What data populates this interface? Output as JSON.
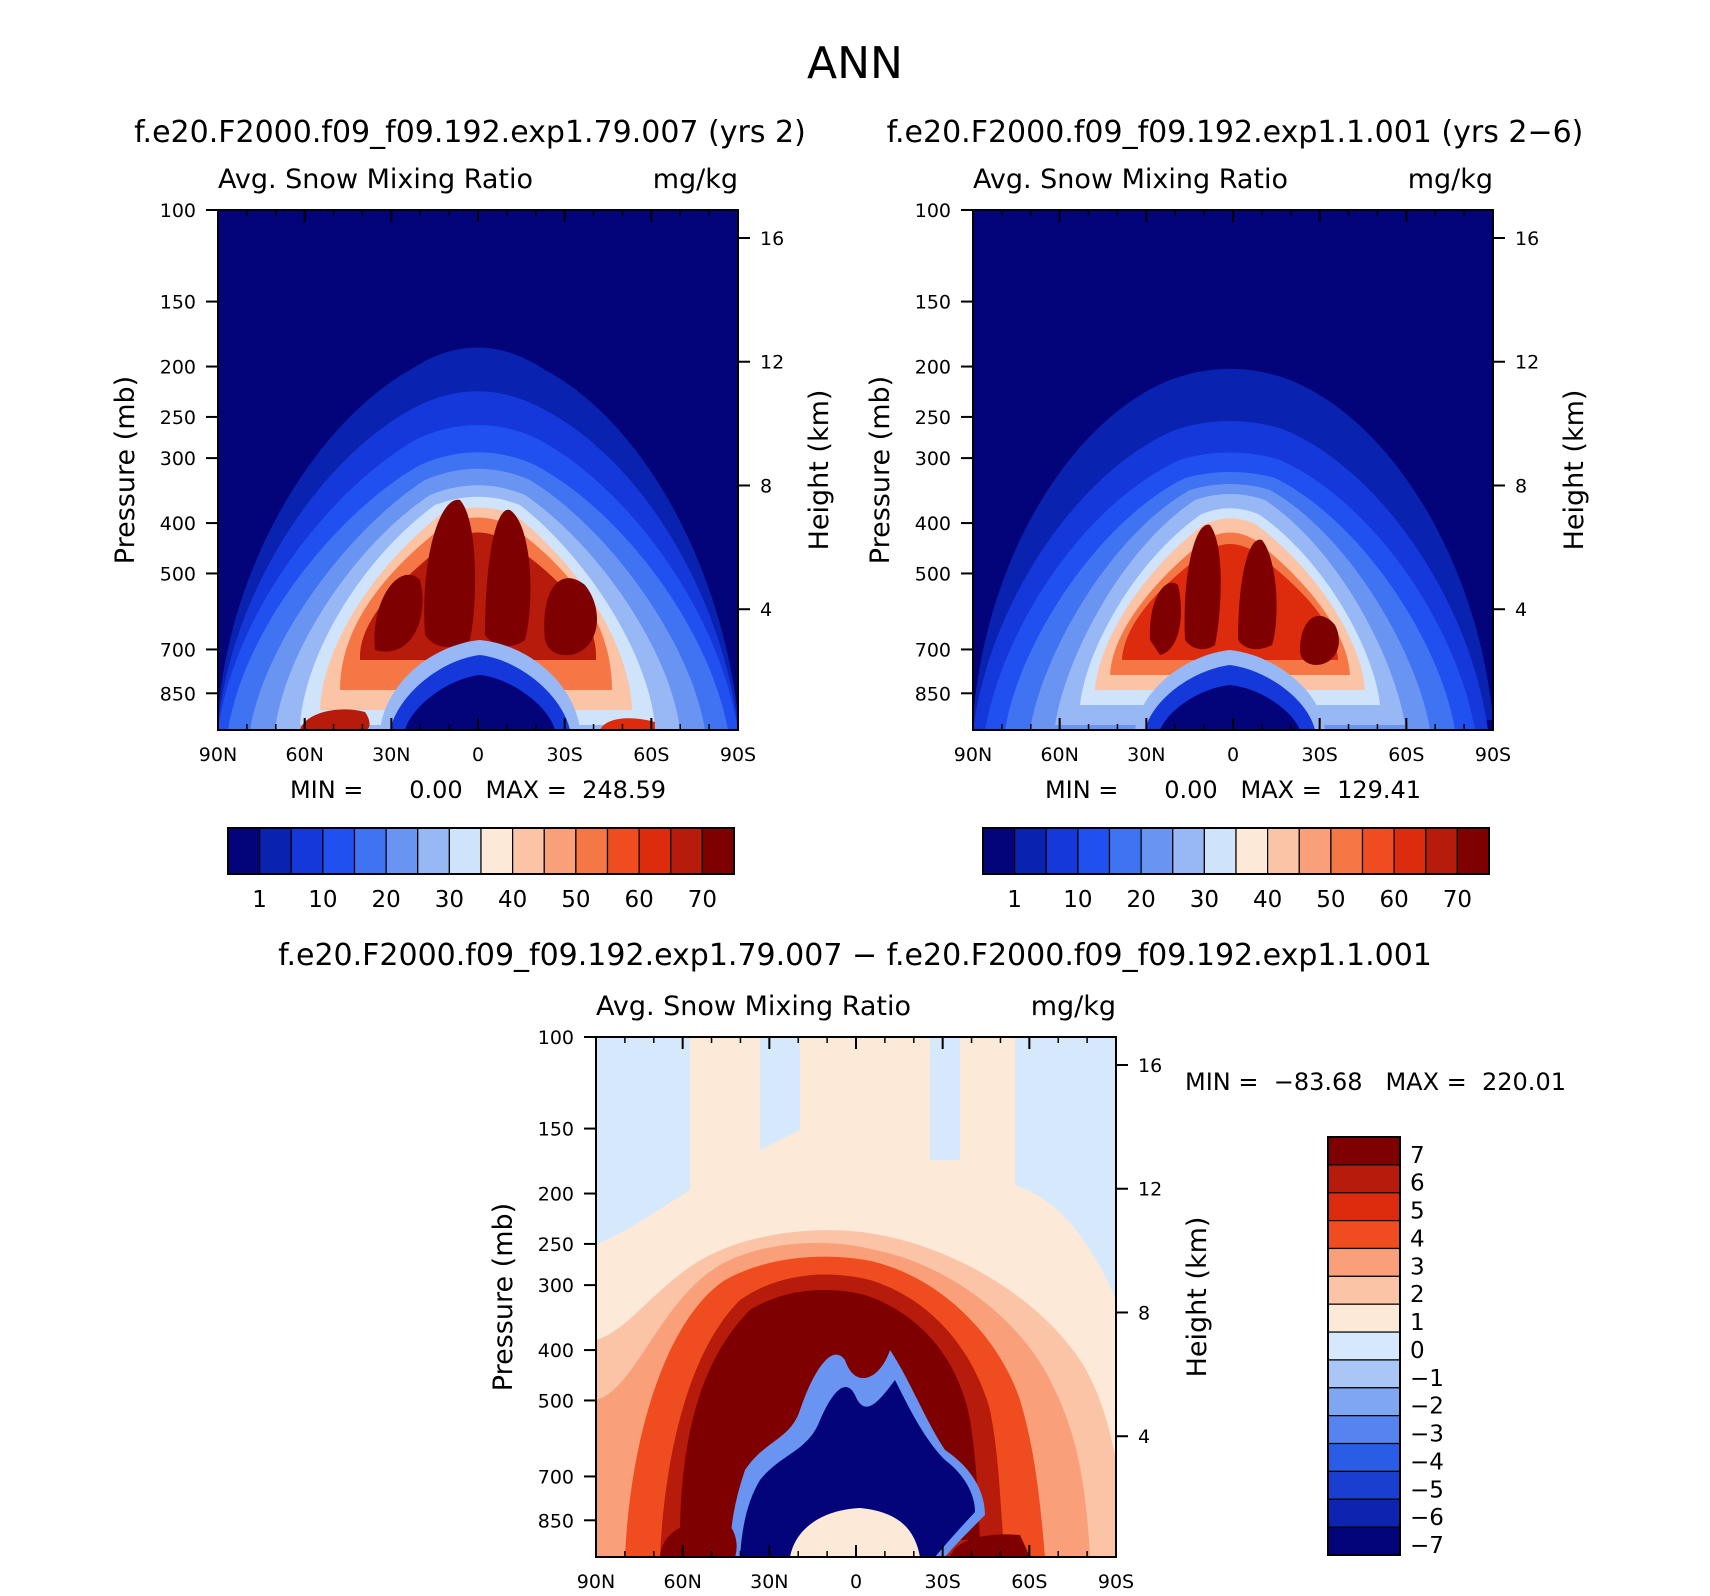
{
  "figure": {
    "title": "ANN",
    "diff_title": "f.e20.F2000.f09_f09.192.exp1.79.007  −  f.e20.F2000.f09_f09.192.exp1.1.001"
  },
  "chart_data": [
    {
      "type": "heatmap",
      "panel": "top-left",
      "run_title": "f.e20.F2000.f09_f09.192.exp1.79.007 (yrs 2)",
      "variable_label": "Avg. Snow Mixing Ratio",
      "units_label": "mg/kg",
      "ylabel": "Pressure (mb)",
      "y2label": "Height (km)",
      "xticks": [
        "90N",
        "60N",
        "30N",
        "0",
        "30S",
        "60S",
        "90S"
      ],
      "yticks": [
        100,
        150,
        200,
        250,
        300,
        400,
        500,
        700,
        850
      ],
      "y2ticks": [
        16,
        12,
        8,
        4
      ],
      "ylim": [
        1000,
        100
      ],
      "min_text": "MIN =      0.00   MAX =  248.59",
      "min": 0.0,
      "max": 248.59,
      "colorbar_labels": [
        "1",
        "10",
        "20",
        "30",
        "40",
        "50",
        "60",
        "70"
      ],
      "colorbar_levels": [
        1,
        5,
        10,
        15,
        20,
        25,
        30,
        35,
        40,
        45,
        50,
        55,
        60,
        65,
        70
      ]
    },
    {
      "type": "heatmap",
      "panel": "top-right",
      "run_title": "f.e20.F2000.f09_f09.192.exp1.1.001 (yrs 2−6)",
      "variable_label": "Avg. Snow Mixing Ratio",
      "units_label": "mg/kg",
      "ylabel": "Pressure (mb)",
      "y2label": "Height (km)",
      "xticks": [
        "90N",
        "60N",
        "30N",
        "0",
        "30S",
        "60S",
        "90S"
      ],
      "yticks": [
        100,
        150,
        200,
        250,
        300,
        400,
        500,
        700,
        850
      ],
      "y2ticks": [
        16,
        12,
        8,
        4
      ],
      "ylim": [
        1000,
        100
      ],
      "min_text": "MIN =      0.00   MAX =  129.41",
      "min": 0.0,
      "max": 129.41,
      "colorbar_labels": [
        "1",
        "10",
        "20",
        "30",
        "40",
        "50",
        "60",
        "70"
      ],
      "colorbar_levels": [
        1,
        5,
        10,
        15,
        20,
        25,
        30,
        35,
        40,
        45,
        50,
        55,
        60,
        65,
        70
      ]
    },
    {
      "type": "heatmap",
      "panel": "bottom-difference",
      "variable_label": "Avg. Snow Mixing Ratio",
      "units_label": "mg/kg",
      "ylabel": "Pressure (mb)",
      "y2label": "Height (km)",
      "xticks": [
        "90N",
        "60N",
        "30N",
        "0",
        "30S",
        "60S",
        "90S"
      ],
      "yticks": [
        100,
        150,
        200,
        250,
        300,
        400,
        500,
        700,
        850
      ],
      "y2ticks": [
        16,
        12,
        8,
        4
      ],
      "ylim": [
        1000,
        100
      ],
      "min_text": "MIN =  −83.68   MAX =  220.01",
      "min": -83.68,
      "max": 220.01,
      "colorbar_labels": [
        "7",
        "6",
        "5",
        "4",
        "3",
        "2",
        "1",
        "0",
        "−1",
        "−2",
        "−3",
        "−4",
        "−5",
        "−6",
        "−7"
      ],
      "colorbar_levels": [
        7,
        6,
        5,
        4,
        3,
        2,
        1,
        0,
        -1,
        -2,
        -3,
        -4,
        -5,
        -6,
        -7
      ]
    }
  ],
  "colors": {
    "seq": [
      "#03037a",
      "#0a22b0",
      "#1538db",
      "#2150f0",
      "#3f73f2",
      "#6994f2",
      "#98b8f5",
      "#cfe3fb",
      "#fde9d8",
      "#fbc4a6",
      "#f9a07b",
      "#f57746",
      "#ef4c1f",
      "#dc2b0d",
      "#b71b0b",
      "#7f0000"
    ],
    "div_top_to_bottom": [
      "#7f0000",
      "#b71b0b",
      "#dc2b0d",
      "#ef4c1f",
      "#f9a07b",
      "#fbc4a6",
      "#fde9d8",
      "#d6e8fb",
      "#a9c6f6",
      "#7ea6f3",
      "#5584f0",
      "#2a5de6",
      "#1a3fd0",
      "#0c24b0",
      "#03037a"
    ]
  }
}
